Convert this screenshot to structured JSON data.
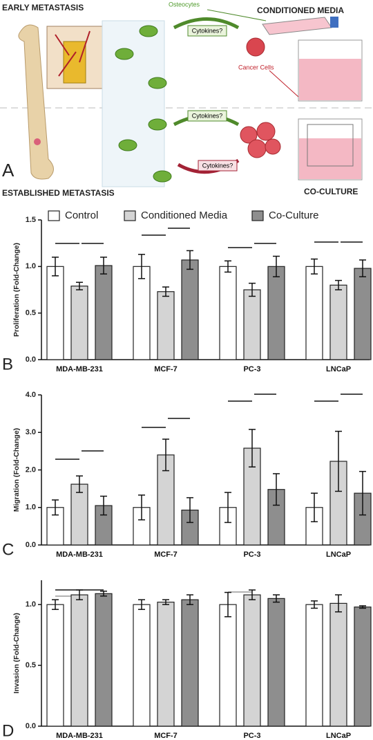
{
  "diagram": {
    "panel": "A",
    "early": "EARLY METASTASIS",
    "conditioned": "CONDITIONED MEDIA",
    "osteocytes": "Osteocytes",
    "cytokines_top": "Cytokines?",
    "cytokines_mid": "Cytokines?",
    "cytokines_back": "Cytokines?",
    "cancer_cells": "Cancer Cells",
    "established": "ESTABLISHED METASTASIS",
    "coculture": "CO-CULTURE"
  },
  "chart_data": [
    {
      "type": "bar",
      "panel": "B",
      "ylabel": "Proliferation (Fold-Change)",
      "legend": "top",
      "categories": [
        "MDA-MB-231",
        "MCF-7",
        "PC-3",
        "LNCaP"
      ],
      "ylim": [
        0,
        1.5
      ],
      "yticks": [
        {
          "value": 0,
          "label": "0.0"
        },
        0.5,
        {
          "value": 1,
          "label": "1.0"
        },
        1.5
      ],
      "series": [
        {
          "name": "Control",
          "color": "#ffffff",
          "values": [
            1.0,
            1.0,
            1.0,
            1.0
          ],
          "errors": [
            0.1,
            0.13,
            0.06,
            0.08
          ]
        },
        {
          "name": "Conditioned Media",
          "color": "#d4d4d4",
          "values": [
            0.79,
            0.73,
            0.75,
            0.8
          ],
          "errors": [
            0.04,
            0.05,
            0.07,
            0.05
          ]
        },
        {
          "name": "Co-Culture",
          "color": "#8e8e8e",
          "values": [
            1.01,
            1.07,
            1.0,
            0.98
          ],
          "errors": [
            0.09,
            0.1,
            0.11,
            0.09
          ]
        }
      ]
    },
    {
      "type": "bar",
      "panel": "C",
      "ylabel": "Migration (Fold-Change)",
      "categories": [
        "MDA-MB-231",
        "MCF-7",
        "PC-3",
        "LNCaP"
      ],
      "ylim": [
        0,
        4
      ],
      "yticks": [
        {
          "value": 0,
          "label": "0.0"
        },
        {
          "value": 1,
          "label": "1.0"
        },
        {
          "value": 2,
          "label": "2.0"
        },
        {
          "value": 3,
          "label": "3.0"
        },
        {
          "value": 4,
          "label": "4.0"
        }
      ],
      "series": [
        {
          "color": "#ffffff",
          "values": [
            1.0,
            1.0,
            1.0,
            1.0
          ],
          "errors": [
            0.2,
            0.33,
            0.4,
            0.38
          ]
        },
        {
          "color": "#d4d4d4",
          "values": [
            1.62,
            2.4,
            2.58,
            2.23
          ],
          "errors": [
            0.22,
            0.42,
            0.5,
            0.8
          ]
        },
        {
          "color": "#8e8e8e",
          "values": [
            1.05,
            0.93,
            1.48,
            1.38
          ],
          "errors": [
            0.25,
            0.33,
            0.42,
            0.58
          ]
        }
      ]
    },
    {
      "type": "bar",
      "panel": "D",
      "ylabel": "Invasion (Fold-Change)",
      "categories": [
        "MDA-MB-231",
        "MCF-7",
        "PC-3",
        "LNCaP"
      ],
      "ylim": [
        0,
        1.2
      ],
      "yticks": [
        {
          "value": 0,
          "label": "0.0"
        },
        0.5,
        {
          "value": 1,
          "label": "1.0"
        }
      ],
      "series": [
        {
          "color": "#ffffff",
          "values": [
            1.0,
            1.0,
            1.0,
            1.0
          ],
          "errors": [
            0.04,
            0.04,
            0.1,
            0.03
          ]
        },
        {
          "color": "#d4d4d4",
          "values": [
            1.08,
            1.02,
            1.08,
            1.01
          ],
          "errors": [
            0.04,
            0.02,
            0.04,
            0.07
          ]
        },
        {
          "color": "#8e8e8e",
          "values": [
            1.09,
            1.04,
            1.05,
            0.98
          ],
          "errors": [
            0.02,
            0.04,
            0.03,
            0.01
          ]
        }
      ]
    }
  ]
}
